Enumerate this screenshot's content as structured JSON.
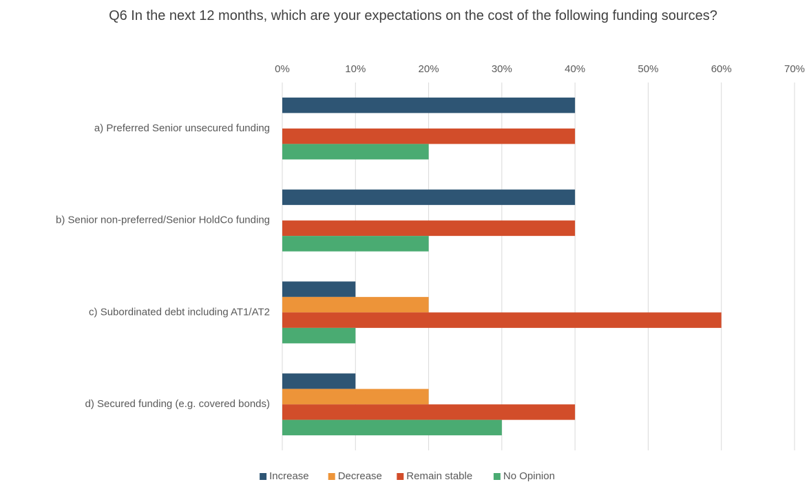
{
  "chart_data": {
    "type": "bar",
    "orientation": "horizontal",
    "title": "Q6 In the next 12 months, which are your expectations on the cost of the following funding sources?",
    "categories": [
      "a) Preferred Senior unsecured funding",
      "b) Senior non-preferred/Senior HoldCo funding",
      "c) Subordinated debt including AT1/AT2",
      "d) Secured funding (e.g. covered bonds)"
    ],
    "series": [
      {
        "name": "Increase",
        "color": "#2e5574",
        "values": [
          40,
          40,
          10,
          10
        ]
      },
      {
        "name": "Decrease",
        "color": "#ed9439",
        "values": [
          0,
          0,
          20,
          20
        ]
      },
      {
        "name": "Remain stable",
        "color": "#d24d2a",
        "values": [
          40,
          40,
          60,
          40
        ]
      },
      {
        "name": "No Opinion",
        "color": "#4aab72",
        "values": [
          20,
          20,
          10,
          30
        ]
      }
    ],
    "xlim": [
      0,
      70
    ],
    "xticks": [
      {
        "value": 0,
        "label": "0%"
      },
      {
        "value": 10,
        "label": "10%"
      },
      {
        "value": 20,
        "label": "20%"
      },
      {
        "value": 30,
        "label": "30%"
      },
      {
        "value": 40,
        "label": "40%"
      },
      {
        "value": 50,
        "label": "50%"
      },
      {
        "value": 60,
        "label": "60%"
      },
      {
        "value": 70,
        "label": "70%"
      }
    ],
    "grid": true,
    "legend": "bottom"
  }
}
